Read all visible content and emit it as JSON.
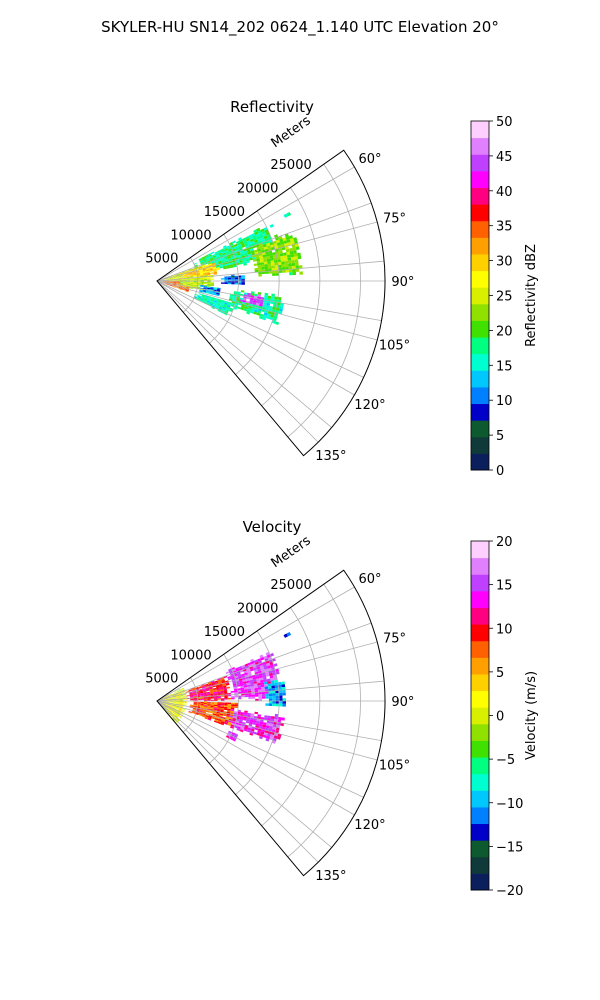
{
  "figure": {
    "title": "SKYLER-HU  SN14_202  0624_1.140 UTC Elevation 20°"
  },
  "chart_data": [
    {
      "type": "heatmap",
      "projection": "polar-sector",
      "title": "Reflectivity",
      "radial_label": "Meters",
      "radial_ticks": [
        5000,
        10000,
        15000,
        20000,
        25000
      ],
      "radial_tick_labels": [
        "5000",
        "10000",
        "15000",
        "20000",
        "25000"
      ],
      "rlim": [
        0,
        28000
      ],
      "angle_ticks": [
        60,
        75,
        90,
        105,
        120,
        135
      ],
      "angle_tick_labels": [
        "60°",
        "75°",
        "90°",
        "105°",
        "120°",
        "135°"
      ],
      "angle_range": [
        55,
        140
      ],
      "grid": true,
      "colorbar": {
        "label": "Reflectivity dBZ",
        "vmin": 0,
        "vmax": 50,
        "ticks": [
          0,
          5,
          10,
          15,
          20,
          25,
          30,
          35,
          40,
          45,
          50
        ],
        "tick_labels": [
          "0",
          "5",
          "10",
          "15",
          "20",
          "25",
          "30",
          "35",
          "40",
          "45",
          "50"
        ],
        "colors": [
          "#0a1f5c",
          "#103a3a",
          "#0c5a2e",
          "#0000c8",
          "#0080ff",
          "#00c8ff",
          "#00ffd0",
          "#00ff80",
          "#40e000",
          "#90e000",
          "#d8f000",
          "#ffff00",
          "#ffd000",
          "#ffa000",
          "#ff6000",
          "#ff0000",
          "#ff0080",
          "#ff00ff",
          "#c040ff",
          "#e080ff",
          "#ffd0ff"
        ]
      },
      "regions": [
        {
          "az": [
            63,
            80
          ],
          "r": [
            5000,
            16000
          ],
          "value": 18
        },
        {
          "az": [
            70,
            88
          ],
          "r": [
            12000,
            18000
          ],
          "value": 22
        },
        {
          "az": [
            70,
            90
          ],
          "r": [
            600,
            7000
          ],
          "value": 25
        },
        {
          "az": [
            72,
            84
          ],
          "r": [
            3000,
            8000
          ],
          "value": 30
        },
        {
          "az": [
            90,
            110
          ],
          "r": [
            400,
            4200
          ],
          "value": 34
        },
        {
          "az": [
            88,
            103
          ],
          "r": [
            3000,
            7000
          ],
          "value": 24
        },
        {
          "az": [
            96,
            110
          ],
          "r": [
            9000,
            16000
          ],
          "value": 17
        },
        {
          "az": [
            106,
            116
          ],
          "r": [
            5000,
            10000
          ],
          "value": 16
        },
        {
          "az": [
            98,
            104
          ],
          "r": [
            10500,
            13500
          ],
          "value": 44
        },
        {
          "az": [
            95,
            105
          ],
          "r": [
            5500,
            8000
          ],
          "value": 12
        },
        {
          "az": [
            85,
            93
          ],
          "r": [
            8000,
            11000
          ],
          "value": 10
        },
        {
          "az": [
            62,
            64
          ],
          "r": [
            17500,
            18500
          ],
          "value": 16
        }
      ]
    },
    {
      "type": "heatmap",
      "projection": "polar-sector",
      "title": "Velocity",
      "radial_label": "Meters",
      "radial_ticks": [
        5000,
        10000,
        15000,
        20000,
        25000
      ],
      "radial_tick_labels": [
        "5000",
        "10000",
        "15000",
        "20000",
        "25000"
      ],
      "rlim": [
        0,
        28000
      ],
      "angle_ticks": [
        60,
        75,
        90,
        105,
        120,
        135
      ],
      "angle_tick_labels": [
        "60°",
        "75°",
        "90°",
        "105°",
        "120°",
        "135°"
      ],
      "angle_range": [
        55,
        140
      ],
      "grid": true,
      "colorbar": {
        "label": "Velocity (m/s)",
        "vmin": -20,
        "vmax": 20,
        "ticks": [
          -20,
          -15,
          -10,
          -5,
          0,
          5,
          10,
          15,
          20
        ],
        "tick_labels": [
          "−20",
          "−15",
          "−10",
          "−5",
          "0",
          "5",
          "10",
          "15",
          "20"
        ],
        "colors": [
          "#0a1f5c",
          "#103a3a",
          "#0c5a2e",
          "#0000c8",
          "#0080ff",
          "#00c8ff",
          "#00ffd0",
          "#00ff80",
          "#40e000",
          "#90e000",
          "#d8f000",
          "#ffff00",
          "#ffd000",
          "#ffa000",
          "#ff6000",
          "#ff0000",
          "#ff0080",
          "#ff00ff",
          "#c040ff",
          "#e080ff",
          "#ffd0ff"
        ]
      },
      "regions": [
        {
          "az": [
            66,
            90
          ],
          "r": [
            9000,
            15500
          ],
          "value": 15
        },
        {
          "az": [
            70,
            90
          ],
          "r": [
            3500,
            9000
          ],
          "value": 10
        },
        {
          "az": [
            62,
            140
          ],
          "r": [
            300,
            3500
          ],
          "value": 1
        },
        {
          "az": [
            90,
            110
          ],
          "r": [
            4000,
            10000
          ],
          "value": 8
        },
        {
          "az": [
            96,
            110
          ],
          "r": [
            9000,
            16000
          ],
          "value": 14
        },
        {
          "az": [
            80,
            93
          ],
          "r": [
            13500,
            16000
          ],
          "value": -10
        },
        {
          "az": [
            112,
            118
          ],
          "r": [
            9500,
            11000
          ],
          "value": 15
        },
        {
          "az": [
            62,
            64
          ],
          "r": [
            17500,
            18500
          ],
          "value": -12
        }
      ]
    }
  ]
}
